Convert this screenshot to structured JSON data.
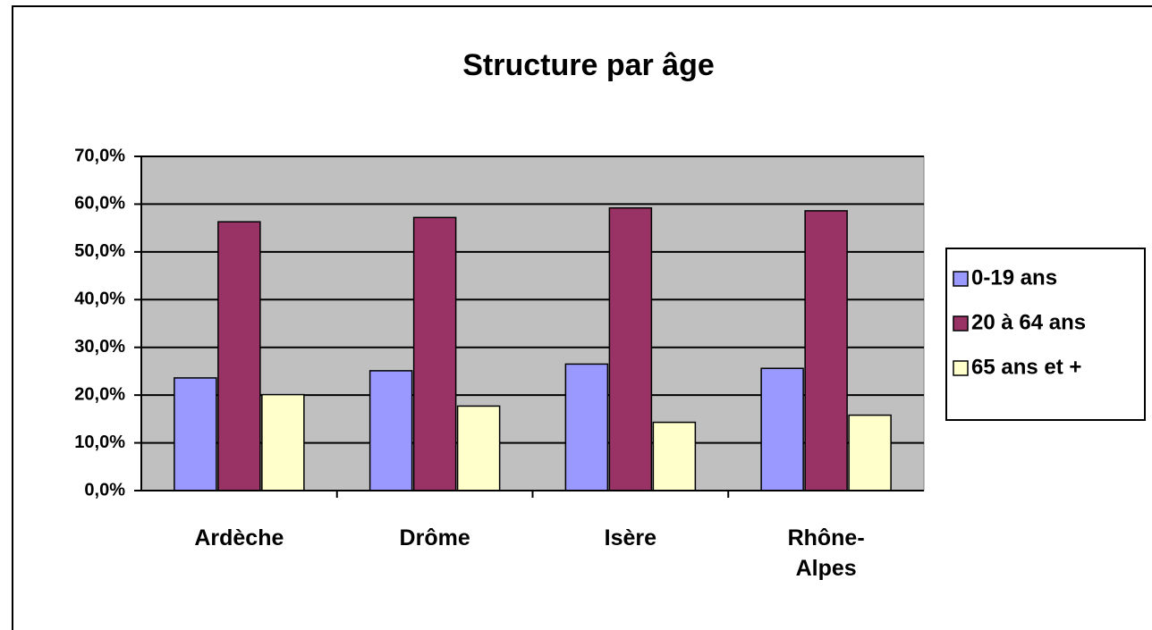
{
  "chart_data": {
    "type": "bar",
    "title": "Structure par âge",
    "categories": [
      "Ardèche",
      "Drôme",
      "Isère",
      "Rhône-Alpes"
    ],
    "series": [
      {
        "name": "0-19 ans",
        "color": "#9999ff",
        "values": [
          23.6,
          25.1,
          26.5,
          25.6
        ]
      },
      {
        "name": "20 à 64 ans",
        "color": "#993366",
        "values": [
          56.3,
          57.2,
          59.2,
          58.6
        ]
      },
      {
        "name": "65 ans et +",
        "color": "#ffffcc",
        "values": [
          20.1,
          17.7,
          14.3,
          15.8
        ]
      }
    ],
    "ylim": [
      0,
      70
    ],
    "yticks": [
      {
        "value": 0,
        "label": "0,0%"
      },
      {
        "value": 10,
        "label": "10,0%"
      },
      {
        "value": 20,
        "label": "20,0%"
      },
      {
        "value": 30,
        "label": "30,0%"
      },
      {
        "value": 40,
        "label": "40,0%"
      },
      {
        "value": 50,
        "label": "50,0%"
      },
      {
        "value": 60,
        "label": "60,0%"
      },
      {
        "value": 70,
        "label": "70,0%"
      }
    ],
    "grid": true,
    "legend": "right"
  }
}
